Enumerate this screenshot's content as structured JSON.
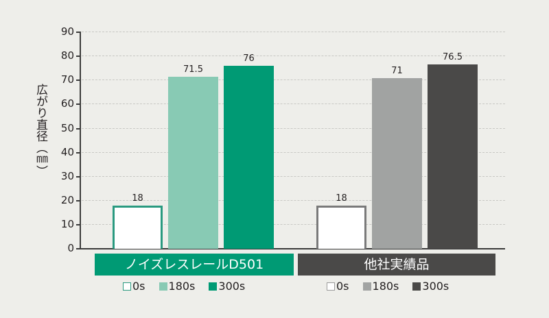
{
  "chart_data": {
    "type": "bar",
    "title": "",
    "xlabel": "",
    "ylabel": "広がり直径（㎜）",
    "ylim": [
      0,
      90
    ],
    "yticks": [
      0,
      10,
      20,
      30,
      40,
      50,
      60,
      70,
      80,
      90
    ],
    "grid": true,
    "categories": [
      "ノイズレスレールD501",
      "他社実績品"
    ],
    "series": [
      {
        "name": "0s",
        "values": [
          18,
          18
        ]
      },
      {
        "name": "180s",
        "values": [
          71.5,
          71
        ]
      },
      {
        "name": "300s",
        "values": [
          76,
          76.5
        ]
      }
    ],
    "legend_position": "below each group"
  },
  "yticks": [
    "0",
    "10",
    "20",
    "30",
    "40",
    "50",
    "60",
    "70",
    "80",
    "90"
  ],
  "ylabel": "広がり直径（㎜）",
  "groups": [
    {
      "title": "ノイズレスレールD501",
      "color": "#009a74",
      "bars": [
        {
          "label": "18",
          "value": 18,
          "fill": "#ffffff",
          "border": "#2a9a80"
        },
        {
          "label": "71.5",
          "value": 71.5,
          "fill": "#88cab4",
          "border": "#88cab4"
        },
        {
          "label": "76",
          "value": 76,
          "fill": "#009a74",
          "border": "#009a74"
        }
      ],
      "legend": [
        {
          "label": "0s",
          "fill": "#ffffff",
          "border": "#2a9a80"
        },
        {
          "label": "180s",
          "fill": "#88cab4",
          "border": "#88cab4"
        },
        {
          "label": "300s",
          "fill": "#009a74",
          "border": "#009a74"
        }
      ]
    },
    {
      "title": "他社実績品",
      "color": "#4a4948",
      "bars": [
        {
          "label": "18",
          "value": 18,
          "fill": "#ffffff",
          "border": "#7a7a7a"
        },
        {
          "label": "71",
          "value": 71,
          "fill": "#a1a3a2",
          "border": "#a1a3a2"
        },
        {
          "label": "76.5",
          "value": 76.5,
          "fill": "#4a4948",
          "border": "#4a4948"
        }
      ],
      "legend": [
        {
          "label": "0s",
          "fill": "#ffffff",
          "border": "#9a9a9a"
        },
        {
          "label": "180s",
          "fill": "#a1a3a2",
          "border": "#a1a3a2"
        },
        {
          "label": "300s",
          "fill": "#4a4948",
          "border": "#4a4948"
        }
      ]
    }
  ]
}
